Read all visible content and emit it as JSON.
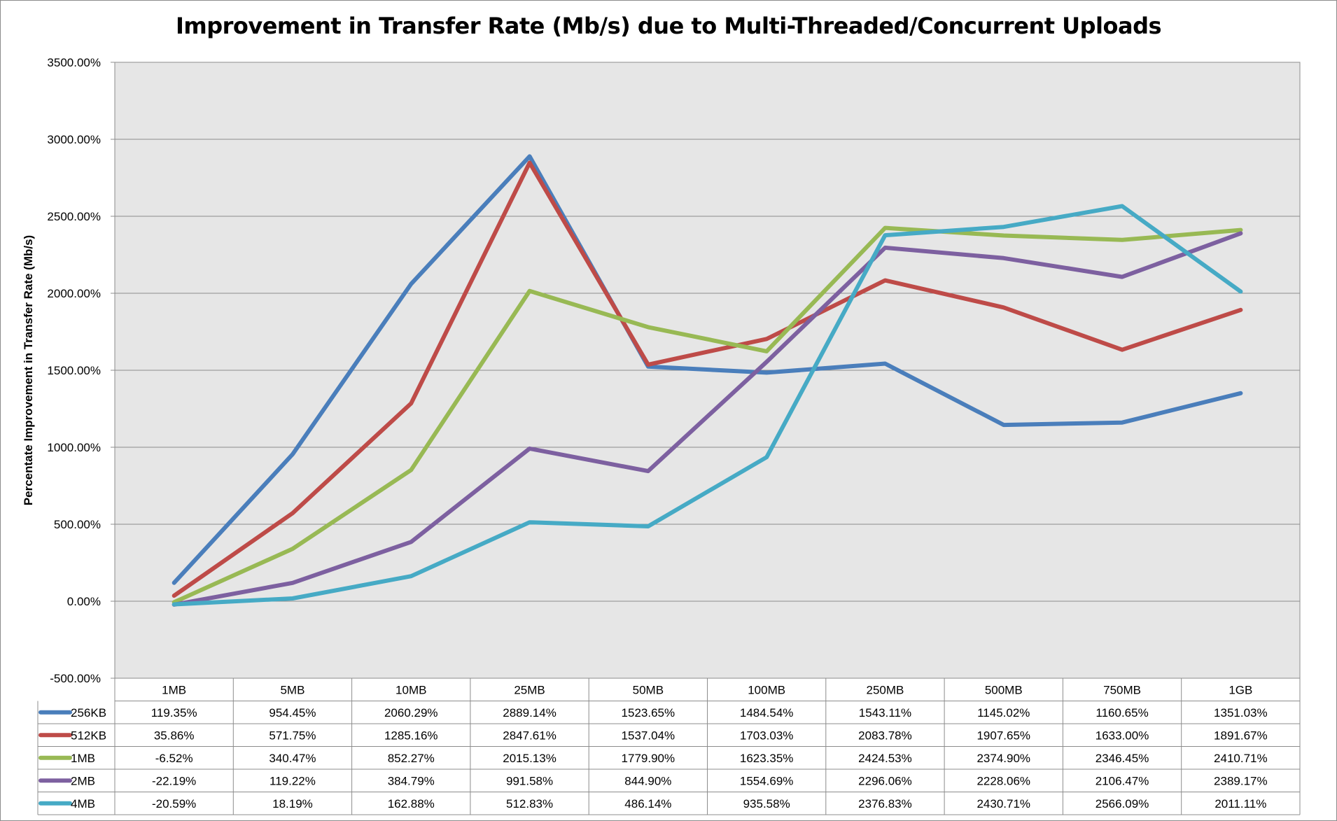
{
  "chart_data": {
    "type": "line",
    "title": "Improvement in Transfer Rate (Mb/s) due to Multi-Threaded/Concurrent Uploads",
    "ylabel": "Percentate Improvement in Transfer Rate (Mb/s)",
    "xlabel": "",
    "ylim": [
      -500,
      3500
    ],
    "ytick_values": [
      -500,
      0,
      500,
      1000,
      1500,
      2000,
      2500,
      3000,
      3500
    ],
    "ytick_labels": [
      "-500.00%",
      "0.00%",
      "500.00%",
      "1000.00%",
      "1500.00%",
      "2000.00%",
      "2500.00%",
      "3000.00%",
      "3500.00%"
    ],
    "grid": true,
    "legend": "data-table",
    "plot_background": "#e6e6e6",
    "categories": [
      "1MB",
      "5MB",
      "10MB",
      "25MB",
      "50MB",
      "100MB",
      "250MB",
      "500MB",
      "750MB",
      "1GB"
    ],
    "series": [
      {
        "name": "256KB",
        "color": "#4a7ebb",
        "values": [
          119.35,
          954.45,
          2060.29,
          2889.14,
          1523.65,
          1484.54,
          1543.11,
          1145.02,
          1160.65,
          1351.03
        ],
        "labels": [
          "119.35%",
          "954.45%",
          "2060.29%",
          "2889.14%",
          "1523.65%",
          "1484.54%",
          "1543.11%",
          "1145.02%",
          "1160.65%",
          "1351.03%"
        ]
      },
      {
        "name": "512KB",
        "color": "#be4b48",
        "values": [
          35.86,
          571.75,
          1285.16,
          2847.61,
          1537.04,
          1703.03,
          2083.78,
          1907.65,
          1633.0,
          1891.67
        ],
        "labels": [
          "35.86%",
          "571.75%",
          "1285.16%",
          "2847.61%",
          "1537.04%",
          "1703.03%",
          "2083.78%",
          "1907.65%",
          "1633.00%",
          "1891.67%"
        ]
      },
      {
        "name": "1MB",
        "color": "#98b954",
        "values": [
          -6.52,
          340.47,
          852.27,
          2015.13,
          1779.9,
          1623.35,
          2424.53,
          2374.9,
          2346.45,
          2410.71
        ],
        "labels": [
          "-6.52%",
          "340.47%",
          "852.27%",
          "2015.13%",
          "1779.90%",
          "1623.35%",
          "2424.53%",
          "2374.90%",
          "2346.45%",
          "2410.71%"
        ]
      },
      {
        "name": "2MB",
        "color": "#7d60a0",
        "values": [
          -22.19,
          119.22,
          384.79,
          991.58,
          844.9,
          1554.69,
          2296.06,
          2228.06,
          2106.47,
          2389.17
        ],
        "labels": [
          "-22.19%",
          "119.22%",
          "384.79%",
          "991.58%",
          "844.90%",
          "1554.69%",
          "2296.06%",
          "2228.06%",
          "2106.47%",
          "2389.17%"
        ]
      },
      {
        "name": "4MB",
        "color": "#46aac5",
        "values": [
          -20.59,
          18.19,
          162.88,
          512.83,
          486.14,
          935.58,
          2376.83,
          2430.71,
          2566.09,
          2011.11
        ],
        "labels": [
          "-20.59%",
          "18.19%",
          "162.88%",
          "512.83%",
          "486.14%",
          "935.58%",
          "2376.83%",
          "2430.71%",
          "2566.09%",
          "2011.11%"
        ]
      }
    ]
  }
}
